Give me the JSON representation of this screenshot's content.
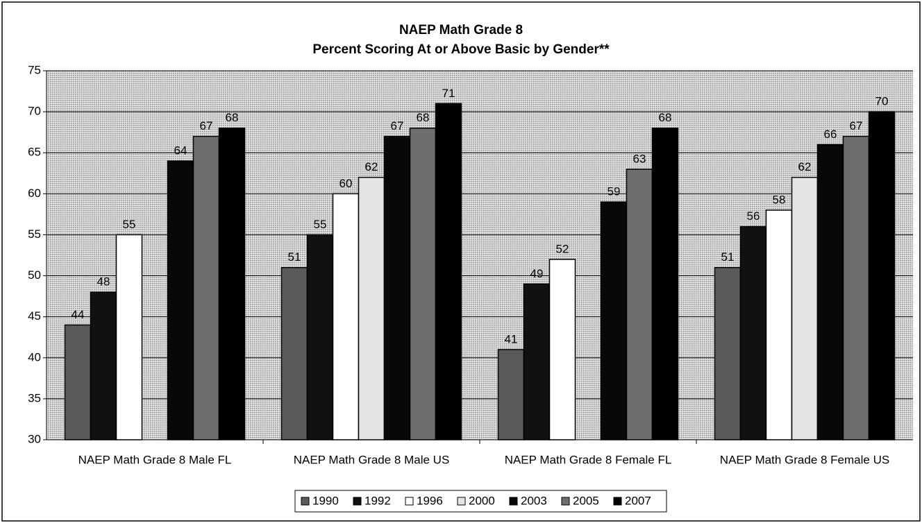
{
  "chart_data": {
    "type": "bar",
    "title": "NAEP Math Grade 8",
    "subtitle": "Percent Scoring At or Above Basic by Gender**",
    "categories": [
      "NAEP Math Grade 8 Male FL",
      "NAEP Math Grade 8 Male US",
      "NAEP Math Grade 8 Female FL",
      "NAEP Math Grade 8 Female US"
    ],
    "series": [
      {
        "name": "1990",
        "color": "#5a5a5a",
        "values": [
          44,
          51,
          41,
          51
        ]
      },
      {
        "name": "1992",
        "color": "#111111",
        "values": [
          48,
          55,
          49,
          56
        ]
      },
      {
        "name": "1996",
        "color": "#ffffff",
        "values": [
          55,
          60,
          52,
          58
        ]
      },
      {
        "name": "2000",
        "color": "#e4e4e4",
        "values": [
          null,
          62,
          null,
          62
        ]
      },
      {
        "name": "2003",
        "color": "#080808",
        "values": [
          64,
          67,
          59,
          66
        ]
      },
      {
        "name": "2005",
        "color": "#6e6e6e",
        "values": [
          67,
          68,
          63,
          67
        ]
      },
      {
        "name": "2007",
        "color": "#000000",
        "values": [
          68,
          71,
          68,
          70
        ]
      }
    ],
    "ylim": [
      30,
      75
    ],
    "yticks": [
      30,
      35,
      40,
      45,
      50,
      55,
      60,
      65,
      70,
      75
    ],
    "grid": true,
    "legend": "bottom"
  }
}
